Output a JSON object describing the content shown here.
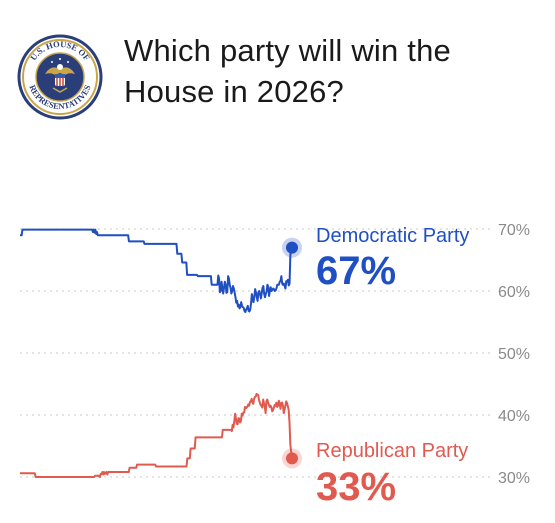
{
  "header": {
    "title": "Which party will win the House in 2026?",
    "seal_text": "U.S. HOUSE OF REPRESENTATIVES"
  },
  "colors": {
    "democratic": "#1f4fc2",
    "republican": "#e05a4f",
    "grid": "#c8c8c8",
    "tick_text": "#8a8a8a",
    "seal_ring": "#2a3f7a",
    "seal_gold": "#c9a64a"
  },
  "chart_data": {
    "type": "line",
    "ylim": [
      30,
      70
    ],
    "y_ticks": [
      70,
      60,
      50,
      40,
      30
    ],
    "y_tick_labels": [
      "70%",
      "60%",
      "50%",
      "40%",
      "30%"
    ],
    "grid": true,
    "series": [
      {
        "name": "Democratic Party",
        "current_label": "67%",
        "color_key": "democratic",
        "values": [
          69,
          69,
          69,
          69.9,
          69.9,
          69.9,
          69.9,
          69.9,
          69.9,
          69.9,
          69.9,
          69.9,
          69.9,
          69.9,
          69.9,
          69.9,
          69.9,
          69.9,
          69.9,
          69.9,
          69.9,
          69.9,
          69.9,
          69.9,
          69.9,
          69.9,
          69.9,
          69.9,
          69.9,
          69.9,
          69.9,
          69.9,
          69.9,
          69.9,
          69.9,
          69.9,
          69.9,
          69.9,
          69.9,
          69.9,
          69.9,
          69.9,
          69.9,
          69.9,
          69.9,
          69.9,
          69.9,
          69.9,
          69.9,
          69.9,
          69.9,
          69.9,
          69.9,
          69.9,
          69.9,
          69.9,
          69.9,
          69.9,
          69.9,
          69.9,
          69.9,
          69.9,
          69.9,
          69.9,
          69.9,
          69.9,
          69.9,
          69.9,
          69.9,
          69.9,
          69.9,
          69.9,
          69.9,
          69.9,
          69.9,
          69.9,
          69.9,
          69.9,
          69.9,
          69.9,
          69.9,
          69.9,
          69.9,
          69.9,
          69.9,
          69.9,
          69.9,
          69.9,
          69.9,
          69.5,
          69.9,
          69.4,
          69.9,
          69.2,
          69.5,
          69,
          69,
          69,
          69,
          69,
          69,
          69,
          69,
          69,
          69,
          69,
          69,
          69,
          69,
          69,
          69,
          69,
          69,
          69,
          69,
          69,
          69,
          69,
          69,
          69,
          69,
          69,
          69,
          69,
          69,
          69,
          69,
          69,
          69,
          69,
          69,
          69,
          69,
          68,
          68,
          68,
          68,
          68,
          68,
          68,
          68,
          68,
          68,
          68,
          68,
          68,
          68,
          68,
          68,
          68,
          68,
          68,
          67.6,
          67.6,
          67.6,
          67.6,
          67.6,
          67.6,
          67.6,
          67.6,
          67.6,
          67.6,
          67.6,
          67.6,
          67.6,
          67.6,
          67.6,
          67.6,
          67.6,
          67.6,
          67.6,
          67.6,
          67.6,
          67.6,
          67.6,
          67.6,
          67.6,
          67.6,
          67.6,
          67.6,
          67.6,
          67.6,
          67.6,
          67.6,
          67.6,
          67.6,
          67.6,
          67.6,
          67.6,
          67.6,
          67.6,
          67.6,
          66,
          66,
          66,
          66,
          66,
          66,
          64.6,
          64.6,
          64.6,
          64.6,
          64.6,
          64.6,
          62.6,
          62.6,
          62.6,
          62.6,
          62.6,
          62.6,
          62.6,
          62.6,
          62.6,
          62.6,
          62.6,
          62.6,
          62.6,
          62.4,
          62.4,
          62.4,
          62.4,
          62.4,
          62.4,
          62.4,
          62.4,
          62.4,
          62.4,
          62.4,
          62.4,
          62.4,
          62.4,
          62.4,
          62.4,
          62.4,
          61,
          61,
          61,
          61,
          61,
          61,
          61,
          61,
          62.5,
          62,
          59.8,
          60,
          61.5,
          60.5,
          59.6,
          60.5,
          61.5,
          61,
          59.7,
          59.8,
          62.4,
          62,
          61,
          60.5,
          59.6,
          60,
          60.8,
          60.4,
          59.7,
          59,
          58.1,
          58.4,
          57.5,
          57.8,
          57.2,
          57.4,
          58.2,
          57.6,
          57.4,
          57.3,
          56.8,
          56.6,
          57,
          57.2,
          57.6,
          56.8,
          56.7,
          57,
          58,
          59.5,
          58.8,
          58.2,
          59,
          60.3,
          59.8,
          59,
          58.4,
          59.8,
          60,
          59.5,
          58.8,
          59.6,
          60.5,
          60.8,
          59.6,
          59,
          59.5,
          59.9,
          61,
          60.7,
          59.2,
          60,
          60.6,
          60,
          60.2,
          60.4,
          60.3,
          60,
          60.1,
          60.4,
          61,
          61,
          61,
          61.5,
          61.6,
          62.4,
          61.2,
          61,
          61.2,
          60.8,
          60.4,
          61.6,
          61.5,
          61.8,
          60.9,
          61.2,
          65.8,
          66.8,
          67
        ],
        "end_value": 67
      },
      {
        "name": "Republican Party",
        "current_label": "33%",
        "color_key": "republican",
        "values": [
          30.6,
          30.6,
          30.6,
          30.6,
          30.6,
          30.6,
          30.6,
          30.6,
          30.6,
          30.6,
          30.6,
          30.6,
          30.6,
          30.6,
          30.6,
          30.6,
          30.6,
          30.6,
          30.6,
          30,
          30,
          30,
          30,
          30,
          30,
          30,
          30,
          30,
          30,
          30,
          30,
          30,
          30,
          30,
          30,
          30,
          30,
          30,
          30,
          30,
          30,
          30,
          30,
          30,
          30,
          30,
          30,
          30,
          30,
          30,
          30,
          30,
          30,
          30,
          30,
          30,
          30,
          30,
          30,
          30,
          30,
          30,
          30,
          30,
          30,
          30,
          30,
          30,
          30,
          30,
          30,
          30,
          30,
          30,
          30,
          30,
          30,
          30,
          30,
          30,
          30,
          30,
          30,
          30,
          30,
          30,
          30,
          30,
          30,
          30,
          30,
          30.2,
          30.2,
          30.2,
          30.2,
          30.2,
          30.2,
          30,
          30.5,
          30.5,
          30.8,
          30.4,
          30.8,
          30.5,
          30.7,
          30.8,
          30.4,
          30.8,
          30.8,
          30.8,
          30.8,
          30.8,
          30.8,
          30.8,
          30.8,
          30.8,
          30.8,
          30.8,
          30.8,
          30.8,
          30.8,
          30.8,
          30.8,
          30.8,
          30.8,
          30.8,
          30.8,
          30.8,
          30.8,
          30.8,
          30.8,
          30.8,
          30.8,
          31.5,
          31.5,
          31.5,
          31.5,
          31.5,
          31.5,
          31.5,
          31.5,
          31.5,
          32,
          32,
          32,
          32,
          32,
          32,
          32,
          32,
          32,
          32,
          32,
          32,
          32,
          32,
          32,
          32,
          32,
          32,
          32,
          32,
          32,
          32,
          32,
          31.7,
          31.7,
          31.7,
          31.7,
          31.7,
          31.7,
          31.7,
          31.7,
          31.7,
          31.7,
          31.7,
          31.7,
          31.7,
          31.7,
          31.7,
          31.7,
          31.7,
          31.7,
          31.7,
          31.7,
          31.7,
          31.7,
          31.7,
          31.7,
          31.7,
          31.7,
          31.7,
          31.7,
          31.7,
          31.7,
          31.7,
          31.7,
          31.7,
          31.7,
          31.7,
          31.7,
          31.7,
          31.7,
          33,
          33,
          33,
          33,
          34.6,
          34.6,
          34.6,
          34.6,
          34.6,
          34.6,
          36.4,
          36.4,
          36.4,
          36.4,
          36.4,
          36.4,
          36.4,
          36.4,
          36.4,
          36.4,
          36.4,
          36.4,
          36.4,
          36.4,
          36.4,
          36.4,
          36.4,
          36.4,
          36.4,
          36.4,
          36.4,
          36.4,
          36.4,
          36.4,
          36.4,
          36.4,
          36.4,
          36.4,
          36.4,
          36.4,
          36.4,
          36.4,
          36.4,
          37.6,
          37.6,
          37.6,
          37.6,
          37.6,
          37.6,
          37.6,
          37.6,
          37.6,
          37.6,
          37.6,
          37.4,
          38.4,
          38,
          39,
          40.2,
          39.4,
          38.6,
          38.5,
          39.5,
          39.4,
          38.8,
          39,
          40.2,
          39.9,
          40.4,
          40.4,
          41.3,
          41.1,
          41.2,
          41.4,
          41.7,
          41.5,
          42.1,
          42.2,
          42.6,
          42,
          41.8,
          42.6,
          42.9,
          43,
          43.4,
          43.3,
          43.2,
          42.4,
          42,
          41.6,
          41.5,
          41.2,
          42.5,
          41.9,
          41.3,
          40.3,
          42.2,
          42.5,
          42,
          41.6,
          41.3,
          41.5,
          41.2,
          40.6,
          40.8,
          41.2,
          41.6,
          41.5,
          42,
          41.3,
          41.5,
          42.3,
          41.9,
          41,
          41.9,
          42,
          41.5,
          40.3,
          40.9,
          41.5,
          42.2,
          41.9,
          41.4,
          40.8,
          38.7,
          35.2,
          34,
          33
        ],
        "end_value": 33
      }
    ]
  }
}
